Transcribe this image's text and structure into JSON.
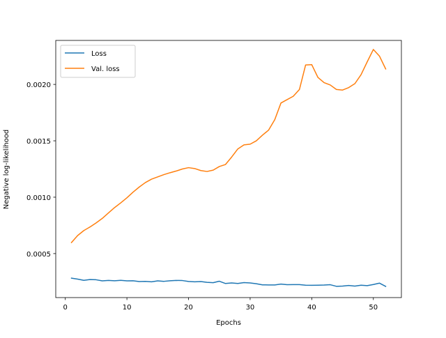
{
  "chart_data": {
    "type": "line",
    "title": "",
    "xlabel": "Epochs",
    "ylabel": "Negative log-likelihood",
    "xlim": [
      -1.55,
      54.55
    ],
    "ylim": [
      0.00011,
      0.00239
    ],
    "x_ticks": [
      0,
      10,
      20,
      30,
      40,
      50
    ],
    "x_tick_labels": [
      "0",
      "10",
      "20",
      "30",
      "40",
      "50"
    ],
    "y_ticks": [
      0.0005,
      0.001,
      0.0015,
      0.002
    ],
    "y_tick_labels": [
      "0.0005",
      "0.0010",
      "0.0015",
      "0.0020"
    ],
    "grid": false,
    "legend_position": "top-left",
    "x": [
      1,
      2,
      3,
      4,
      5,
      6,
      7,
      8,
      9,
      10,
      11,
      12,
      13,
      14,
      15,
      16,
      17,
      18,
      19,
      20,
      21,
      22,
      23,
      24,
      25,
      26,
      27,
      28,
      29,
      30,
      31,
      32,
      33,
      34,
      35,
      36,
      37,
      38,
      39,
      40,
      41,
      42,
      43,
      44,
      45,
      46,
      47,
      48,
      49,
      50,
      51,
      52
    ],
    "series": [
      {
        "name": "Loss",
        "color": "#1f77b4",
        "values": [
          0.000282,
          0.000274,
          0.000263,
          0.00027,
          0.000268,
          0.000258,
          0.000262,
          0.000259,
          0.000263,
          0.000258,
          0.000259,
          0.000252,
          0.000254,
          0.00025,
          0.000258,
          0.000254,
          0.000259,
          0.000262,
          0.000261,
          0.000253,
          0.00025,
          0.000252,
          0.000245,
          0.000242,
          0.000255,
          0.000235,
          0.00024,
          0.000235,
          0.000243,
          0.00024,
          0.000233,
          0.000223,
          0.000222,
          0.000222,
          0.00023,
          0.000224,
          0.000225,
          0.000225,
          0.00022,
          0.000219,
          0.00022,
          0.000221,
          0.000224,
          0.00021,
          0.000212,
          0.000217,
          0.000212,
          0.00022,
          0.000216,
          0.000226,
          0.000238,
          0.000209
        ]
      },
      {
        "name": "Val. loss",
        "color": "#ff7f0e",
        "values": [
          0.000598,
          0.00066,
          0.000704,
          0.000736,
          0.000772,
          0.000812,
          0.00086,
          0.000908,
          0.00095,
          0.000995,
          0.001045,
          0.00109,
          0.00113,
          0.00116,
          0.00118,
          0.0012,
          0.001217,
          0.001232,
          0.00125,
          0.001262,
          0.001254,
          0.001236,
          0.001228,
          0.00124,
          0.001272,
          0.00129,
          0.001356,
          0.001428,
          0.001464,
          0.00147,
          0.0015,
          0.00155,
          0.001595,
          0.001688,
          0.001835,
          0.001865,
          0.001895,
          0.001955,
          0.002172,
          0.002175,
          0.002062,
          0.002016,
          0.001995,
          0.001955,
          0.00195,
          0.001972,
          0.002007,
          0.002086,
          0.0022,
          0.00231,
          0.00225,
          0.002137
        ]
      }
    ]
  }
}
